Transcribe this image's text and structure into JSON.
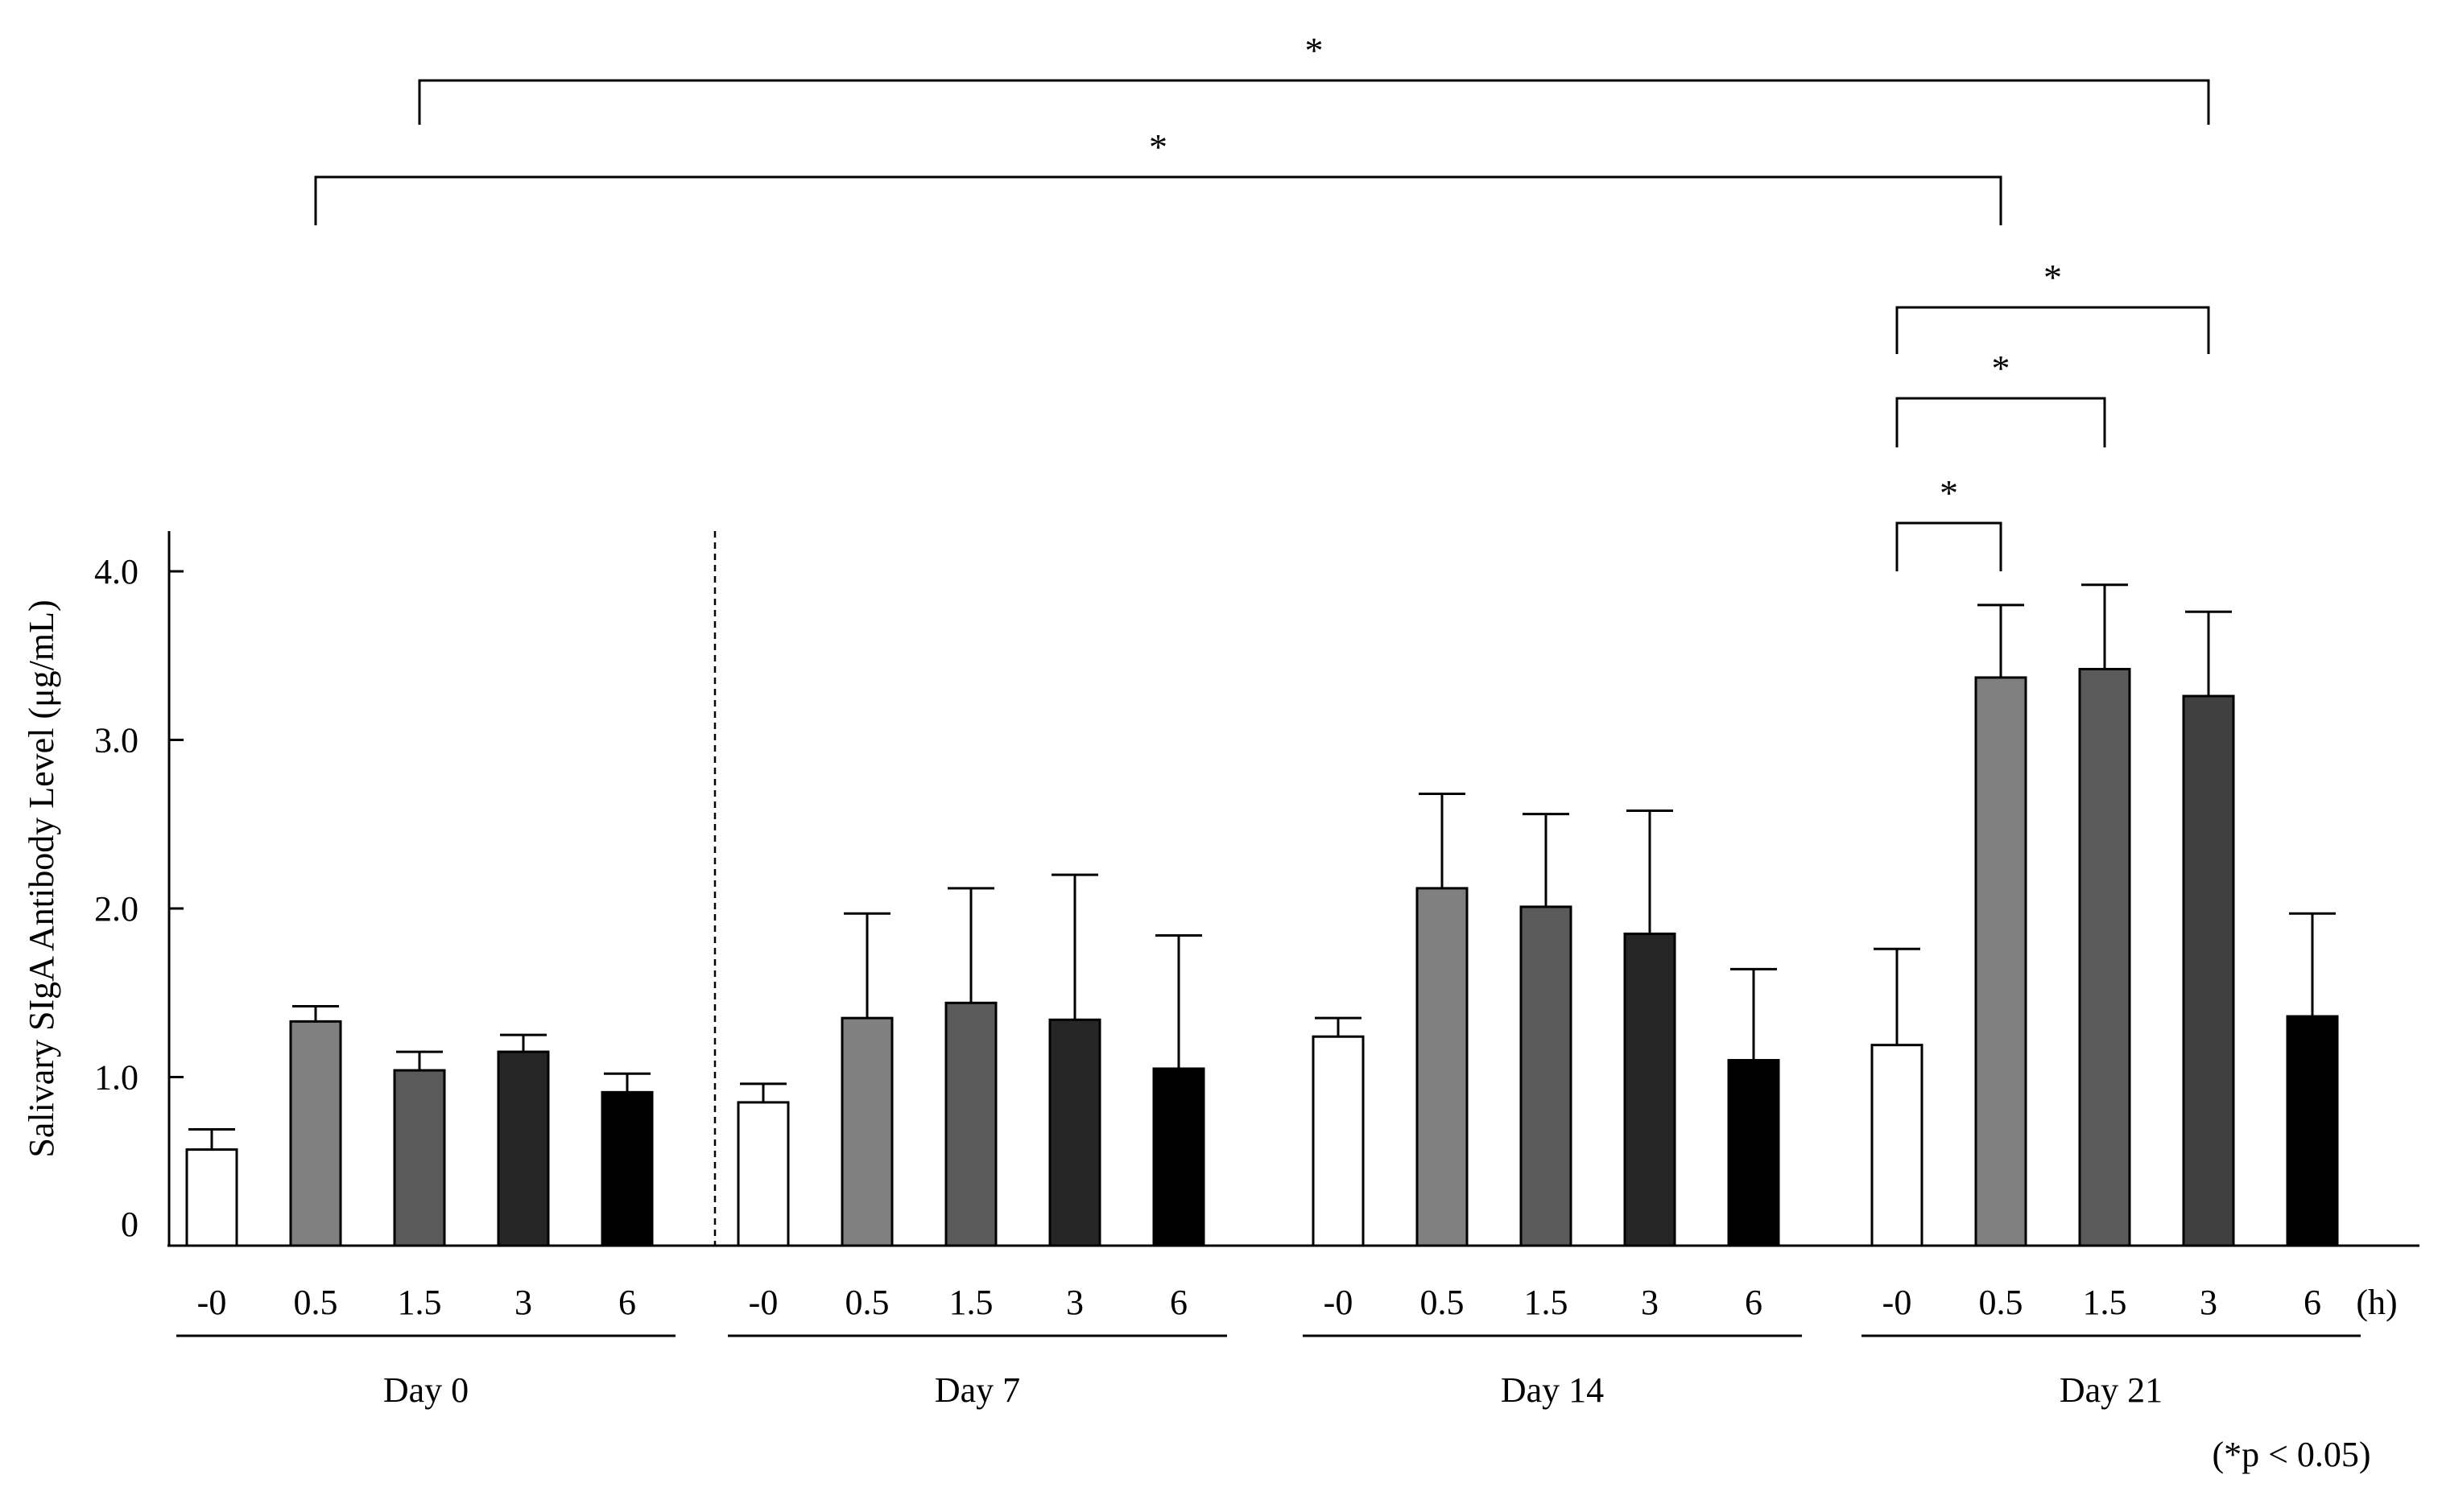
{
  "chart_data": {
    "type": "bar",
    "ylabel": "Salivary  SIgA Antibody Level (μg/mL)",
    "ylim": [
      0,
      4.0
    ],
    "yticks": [
      "0",
      "1.0",
      "2.0",
      "3.0",
      "4.0"
    ],
    "x_unit": "(h)",
    "note": "(*p < 0.05)",
    "groups": [
      {
        "label": "Day 0",
        "categories": [
          "-0",
          "0.5",
          "1.5",
          "3",
          "6"
        ],
        "values": [
          0.57,
          1.33,
          1.04,
          1.15,
          0.91
        ],
        "errors": [
          0.12,
          0.09,
          0.11,
          0.1,
          0.11
        ]
      },
      {
        "label": "Day 7",
        "categories": [
          "-0",
          "0.5",
          "1.5",
          "3",
          "6"
        ],
        "values": [
          0.85,
          1.35,
          1.44,
          1.34,
          1.05
        ],
        "errors": [
          0.11,
          0.62,
          0.68,
          0.86,
          0.79
        ]
      },
      {
        "label": "Day 14",
        "categories": [
          "-0",
          "0.5",
          "1.5",
          "3",
          "6"
        ],
        "values": [
          1.24,
          2.12,
          2.01,
          1.85,
          1.1
        ],
        "errors": [
          0.11,
          0.56,
          0.55,
          0.73,
          0.54
        ]
      },
      {
        "label": "Day 21",
        "categories": [
          "-0",
          "0.5",
          "1.5",
          "3",
          "6"
        ],
        "values": [
          1.19,
          3.37,
          3.42,
          3.26,
          1.36
        ],
        "errors": [
          0.57,
          0.43,
          0.5,
          0.5,
          0.61
        ]
      }
    ],
    "bar_colors": [
      "#ffffff",
      "#808080",
      "#5a5a5a",
      "#262626",
      "#000000"
    ],
    "day21_colors": [
      "#ffffff",
      "#808080",
      "#5a5a5a",
      "#404040",
      "#000000"
    ],
    "significance": [
      {
        "from": "Day 0 · 1.5 h",
        "to": "Day 21 · 3 h",
        "label": "*"
      },
      {
        "from": "Day 0 · 0.5 h",
        "to": "Day 21 · 0.5 h",
        "label": "*"
      },
      {
        "from": "Day 21 · -0 h",
        "to": "Day 21 · 3 h",
        "label": "*"
      },
      {
        "from": "Day 21 · -0 h",
        "to": "Day 21 · 1.5 h",
        "label": "*"
      },
      {
        "from": "Day 21 · -0 h",
        "to": "Day 21 · 0.5 h",
        "label": "*"
      }
    ],
    "divider": "dashed line between Day 0 and Day 7"
  }
}
